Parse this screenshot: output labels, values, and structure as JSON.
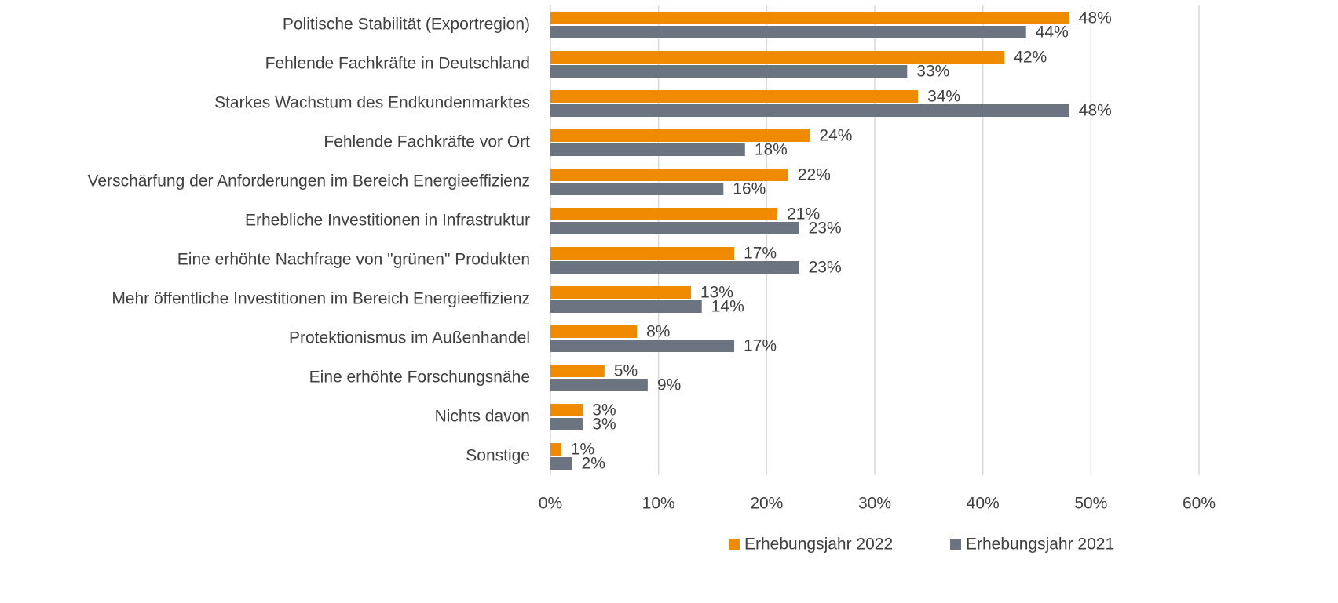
{
  "chart_data": {
    "type": "bar",
    "orientation": "horizontal",
    "categories": [
      "Politische Stabilität (Exportregion)",
      "Fehlende Fachkräfte in Deutschland",
      "Starkes Wachstum des Endkundenmarktes",
      "Fehlende Fachkräfte vor Ort",
      "Verschärfung der Anforderungen im Bereich Energieeffizienz",
      "Erhebliche Investitionen in Infrastruktur",
      "Eine erhöhte Nachfrage von \"grünen\" Produkten",
      "Mehr öffentliche Investitionen im Bereich Energieeffizienz",
      "Protektionismus im Außenhandel",
      "Eine erhöhte Forschungsnähe",
      "Nichts davon",
      "Sonstige"
    ],
    "series": [
      {
        "name": "Erhebungsjahr 2022",
        "color": "#f08a00",
        "values": [
          48,
          42,
          34,
          24,
          22,
          21,
          17,
          13,
          8,
          5,
          3,
          1
        ],
        "value_labels": [
          "48%",
          "42%",
          "34%",
          "24%",
          "22%",
          "21%",
          "17%",
          "13%",
          "8%",
          "5%",
          "3%",
          "1%"
        ]
      },
      {
        "name": "Erhebungsjahr 2021",
        "color": "#6b7480",
        "values": [
          44,
          33,
          48,
          18,
          16,
          23,
          23,
          14,
          17,
          9,
          3,
          2
        ],
        "value_labels": [
          "44%",
          "33%",
          "48%",
          "18%",
          "16%",
          "23%",
          "23%",
          "14%",
          "17%",
          "9%",
          "3%",
          "2%"
        ]
      }
    ],
    "xlim": [
      0,
      60
    ],
    "xticks": [
      {
        "value": 0,
        "label": "0%"
      },
      {
        "value": 10,
        "label": "10%"
      },
      {
        "value": 20,
        "label": "20%"
      },
      {
        "value": 30,
        "label": "30%"
      },
      {
        "value": 40,
        "label": "40%"
      },
      {
        "value": 50,
        "label": "50%"
      },
      {
        "value": 60,
        "label": "60%"
      }
    ],
    "grid": true,
    "legend": "bottom"
  }
}
